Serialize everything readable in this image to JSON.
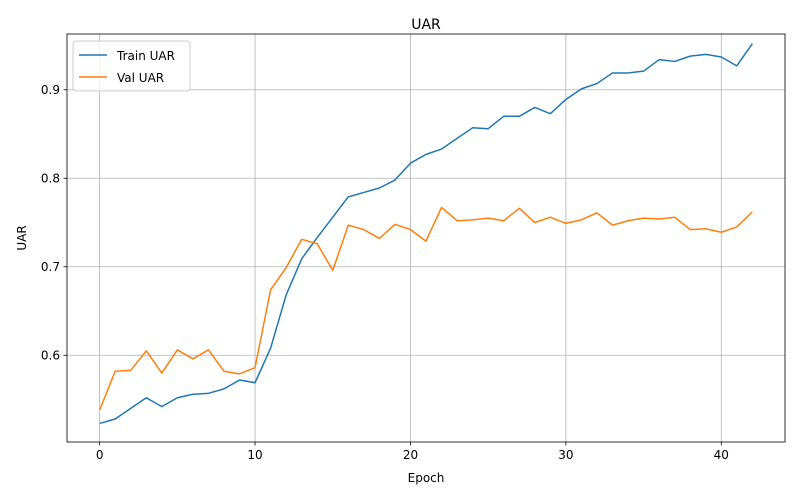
{
  "chart_data": {
    "type": "line",
    "title": "UAR",
    "xlabel": "Epoch",
    "ylabel": "UAR",
    "xlim": [
      -2.1,
      44.1
    ],
    "ylim": [
      0.502,
      0.963
    ],
    "x_ticks": [
      0,
      10,
      20,
      30,
      40
    ],
    "y_ticks": [
      0.6,
      0.7,
      0.8,
      0.9
    ],
    "y_tick_labels": [
      "0.6",
      "0.7",
      "0.8",
      "0.9"
    ],
    "grid": true,
    "legend_position": "upper-left",
    "x": [
      0,
      1,
      2,
      3,
      4,
      5,
      6,
      7,
      8,
      9,
      10,
      11,
      12,
      13,
      14,
      15,
      16,
      17,
      18,
      19,
      20,
      21,
      22,
      23,
      24,
      25,
      26,
      27,
      28,
      29,
      30,
      31,
      32,
      33,
      34,
      35,
      36,
      37,
      38,
      39,
      40,
      41,
      42
    ],
    "series": [
      {
        "name": "Train UAR",
        "color": "#1f77b4",
        "values": [
          0.523,
          0.528,
          0.54,
          0.552,
          0.542,
          0.552,
          0.556,
          0.557,
          0.562,
          0.572,
          0.569,
          0.608,
          0.668,
          0.709,
          0.733,
          0.756,
          0.779,
          0.784,
          0.789,
          0.798,
          0.817,
          0.827,
          0.833,
          0.845,
          0.857,
          0.856,
          0.87,
          0.87,
          0.88,
          0.873,
          0.889,
          0.901,
          0.907,
          0.919,
          0.919,
          0.921,
          0.934,
          0.932,
          0.938,
          0.94,
          0.937,
          0.927,
          0.952
        ]
      },
      {
        "name": "Val UAR",
        "color": "#ff7f0e",
        "values": [
          0.538,
          0.582,
          0.583,
          0.605,
          0.58,
          0.606,
          0.596,
          0.606,
          0.582,
          0.579,
          0.586,
          0.674,
          0.699,
          0.731,
          0.726,
          0.696,
          0.747,
          0.742,
          0.732,
          0.748,
          0.742,
          0.729,
          0.767,
          0.752,
          0.753,
          0.755,
          0.752,
          0.766,
          0.75,
          0.756,
          0.749,
          0.753,
          0.761,
          0.747,
          0.752,
          0.755,
          0.754,
          0.756,
          0.742,
          0.743,
          0.739,
          0.745,
          0.762
        ]
      }
    ]
  }
}
